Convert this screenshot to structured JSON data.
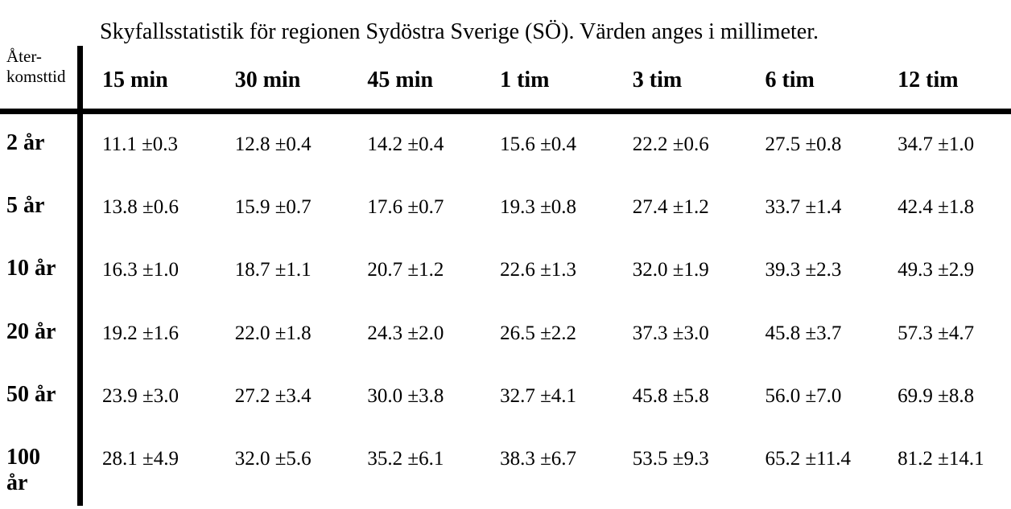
{
  "page": {
    "background": "#ffffff",
    "text_color": "#000000"
  },
  "table": {
    "title": "Skyfallsstatistik för regionen Sydöstra Sverige (SÖ). Värden anges i millimeter.",
    "corner_label_line1": "Åter-",
    "corner_label_line2": "komsttid",
    "columns": [
      "15 min",
      "30 min",
      "45 min",
      "1 tim",
      "3 tim",
      "6 tim",
      "12 tim"
    ],
    "rows": [
      {
        "label": "2 år",
        "values": [
          "11.1 ±0.3",
          "12.8 ±0.4",
          "14.2 ±0.4",
          "15.6 ±0.4",
          "22.2 ±0.6",
          "27.5 ±0.8",
          "34.7 ±1.0"
        ]
      },
      {
        "label": "5 år",
        "values": [
          "13.8 ±0.6",
          "15.9 ±0.7",
          "17.6 ±0.7",
          "19.3 ±0.8",
          "27.4 ±1.2",
          "33.7 ±1.4",
          "42.4 ±1.8"
        ]
      },
      {
        "label": "10 år",
        "values": [
          "16.3 ±1.0",
          "18.7 ±1.1",
          "20.7 ±1.2",
          "22.6 ±1.3",
          "32.0 ±1.9",
          "39.3 ±2.3",
          "49.3 ±2.9"
        ]
      },
      {
        "label": "20 år",
        "values": [
          "19.2 ±1.6",
          "22.0 ±1.8",
          "24.3 ±2.0",
          "26.5 ±2.2",
          "37.3 ±3.0",
          "45.8 ±3.7",
          "57.3 ±4.7"
        ]
      },
      {
        "label": "50 år",
        "values": [
          "23.9 ±3.0",
          "27.2 ±3.4",
          "30.0 ±3.8",
          "32.7 ±4.1",
          "45.8 ±5.8",
          "56.0 ±7.0",
          "69.9 ±8.8"
        ]
      },
      {
        "label": "100 år",
        "values": [
          "28.1 ±4.9",
          "32.0 ±5.6",
          "35.2 ±6.1",
          "38.3 ±6.7",
          "53.5 ±9.3",
          "65.2 ±11.4",
          "81.2 ±14.1"
        ]
      }
    ]
  }
}
